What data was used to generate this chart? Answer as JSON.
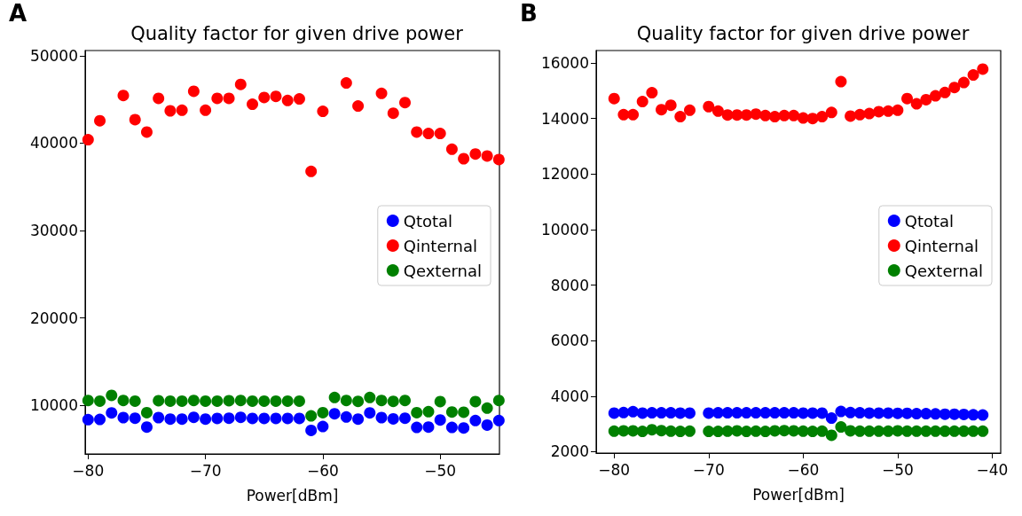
{
  "chart_data": [
    {
      "type": "scatter",
      "title": "Quality factor for given drive power",
      "xlabel": "Power[dBm]",
      "annotations": [
        "A"
      ],
      "marker": "circle",
      "grid": false,
      "legend": "right",
      "xlim": [
        -80.25,
        -44.95
      ],
      "ylim": [
        4430,
        50600
      ],
      "xticks": [
        -80,
        -70,
        -60,
        -50
      ],
      "yticks": [
        10000,
        20000,
        30000,
        40000,
        50000
      ],
      "x": [
        -80,
        -79,
        -78,
        -77,
        -76,
        -75,
        -74,
        -73,
        -72,
        -71,
        -70,
        -69,
        -68,
        -67,
        -66,
        -65,
        -64,
        -63,
        -62,
        -61,
        -60,
        -59,
        -58,
        -57,
        -56,
        -55,
        -54,
        -53,
        -52,
        -51,
        -50,
        -49,
        -48,
        -47,
        -46,
        -45
      ],
      "series": [
        {
          "name": "Qtotal",
          "color": "#0000ff",
          "values": [
            8350,
            8380,
            9130,
            8590,
            8520,
            7500,
            8590,
            8420,
            8420,
            8620,
            8420,
            8490,
            8520,
            8620,
            8490,
            8490,
            8490,
            8490,
            8490,
            7130,
            7570,
            9030,
            8660,
            8420,
            9130,
            8590,
            8450,
            8520,
            7470,
            7500,
            8320,
            7470,
            7400,
            8250,
            7740,
            8250
          ]
        },
        {
          "name": "Qinternal",
          "color": "#ff0000",
          "values": [
            40390,
            42560,
            null,
            45460,
            42690,
            41270,
            45130,
            43700,
            43770,
            45940,
            43770,
            45130,
            45130,
            46720,
            44450,
            45230,
            45360,
            44890,
            45060,
            36770,
            43640,
            null,
            46890,
            44250,
            null,
            45700,
            43430,
            44650,
            41270,
            41100,
            41100,
            39310,
            38220,
            38760,
            38530,
            38120
          ]
        },
        {
          "name": "Qexternal",
          "color": "#008000",
          "values": [
            10550,
            10480,
            11130,
            10550,
            10480,
            9160,
            10520,
            10480,
            10480,
            10550,
            10480,
            10480,
            10520,
            10550,
            10480,
            10480,
            10480,
            10480,
            10480,
            8790,
            9160,
            10890,
            10550,
            10450,
            10890,
            10550,
            10450,
            10550,
            9160,
            9270,
            10420,
            9230,
            9200,
            10420,
            9670,
            10550
          ]
        }
      ]
    },
    {
      "type": "scatter",
      "title": "Quality factor for given drive power",
      "xlabel": "Power[dBm]",
      "annotations": [
        "B"
      ],
      "marker": "circle",
      "grid": false,
      "legend": "right",
      "xlim": [
        -81.9,
        -39.1
      ],
      "ylim": [
        1950,
        16450
      ],
      "xticks": [
        -80,
        -70,
        -60,
        -50,
        -40
      ],
      "yticks": [
        2000,
        4000,
        6000,
        8000,
        10000,
        12000,
        14000,
        16000
      ],
      "x": [
        -80,
        -79,
        -78,
        -77,
        -76,
        -75,
        -74,
        -73,
        -72,
        -70,
        -69,
        -68,
        -67,
        -66,
        -65,
        -64,
        -63,
        -62,
        -61,
        -60,
        -59,
        -58,
        -57,
        -56,
        -55,
        -54,
        -53,
        -52,
        -51,
        -50,
        -49,
        -48,
        -47,
        -46,
        -45,
        -44,
        -43,
        -42,
        -41
      ],
      "series": [
        {
          "name": "Qtotal",
          "color": "#0000ff",
          "values": [
            3390,
            3410,
            3440,
            3390,
            3400,
            3400,
            3400,
            3390,
            3390,
            3390,
            3400,
            3400,
            3400,
            3400,
            3400,
            3400,
            3400,
            3400,
            3400,
            3390,
            3390,
            3390,
            3210,
            3450,
            3410,
            3400,
            3390,
            3390,
            3390,
            3380,
            3380,
            3370,
            3370,
            3360,
            3350,
            3350,
            3340,
            3330,
            3320
          ]
        },
        {
          "name": "Qinternal",
          "color": "#ff0000",
          "values": [
            14720,
            14140,
            14140,
            14610,
            14930,
            14320,
            14480,
            14070,
            14300,
            14430,
            14270,
            14130,
            14130,
            14130,
            14160,
            14110,
            14070,
            14110,
            14110,
            14020,
            14000,
            14070,
            14220,
            15330,
            14090,
            14140,
            14180,
            14250,
            14270,
            14300,
            14720,
            14530,
            14680,
            14820,
            14940,
            15120,
            15300,
            15570,
            15780
          ]
        },
        {
          "name": "Qexternal",
          "color": "#008000",
          "values": [
            2740,
            2750,
            2750,
            2730,
            2790,
            2760,
            2740,
            2730,
            2740,
            2730,
            2730,
            2740,
            2750,
            2730,
            2740,
            2730,
            2750,
            2760,
            2750,
            2740,
            2730,
            2740,
            2590,
            2890,
            2750,
            2740,
            2740,
            2740,
            2740,
            2750,
            2740,
            2740,
            2740,
            2740,
            2740,
            2740,
            2740,
            2740,
            2740
          ]
        }
      ]
    }
  ]
}
